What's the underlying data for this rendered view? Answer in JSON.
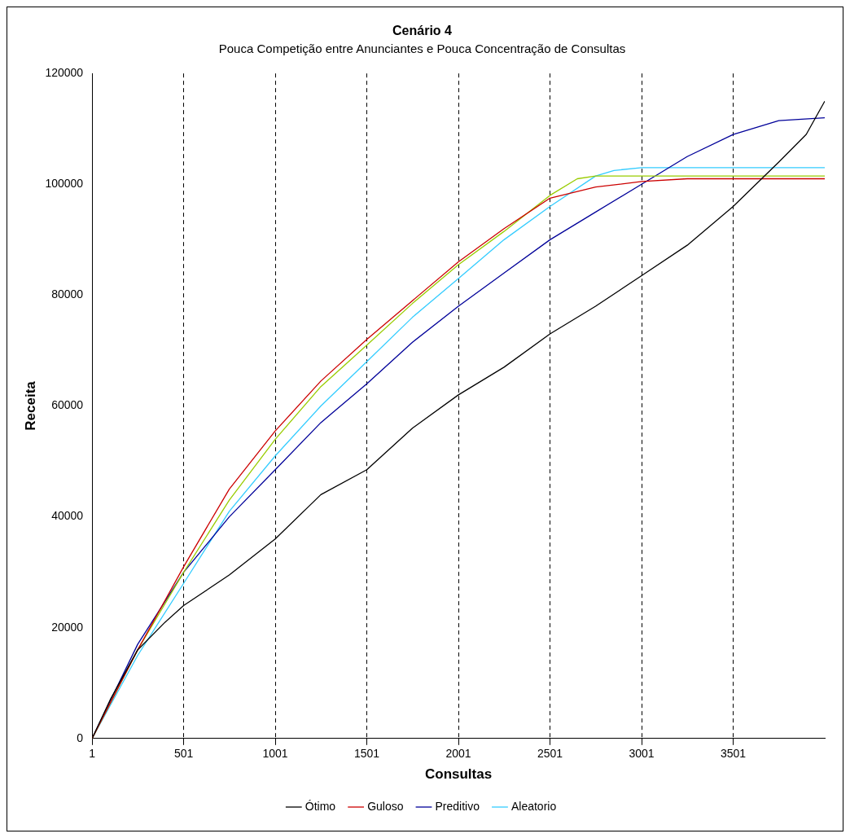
{
  "chart_data": {
    "type": "line",
    "title": "Cenário 4",
    "subtitle": "Pouca Competição entre Anunciantes e Pouca Concentração de Consultas",
    "xlabel": "Consultas",
    "ylabel": "Receita",
    "xlim": [
      1,
      4001
    ],
    "xticks": [
      1,
      501,
      1001,
      1501,
      2001,
      2501,
      3001,
      3501
    ],
    "ylim": [
      0,
      120000
    ],
    "yticks": [
      0,
      20000,
      40000,
      60000,
      80000,
      100000,
      120000
    ],
    "grid": "x",
    "legend": "bottom",
    "marker": "none",
    "line_style": "solid",
    "series": [
      {
        "name": "Ótimo",
        "color": "#000000",
        "x": [
          1,
          100,
          250,
          400,
          501,
          750,
          1001,
          1250,
          1501,
          1750,
          2001,
          2250,
          2501,
          2750,
          3001,
          3250,
          3501,
          3750,
          3900,
          4001
        ],
        "values": [
          0,
          7000,
          16000,
          21000,
          24000,
          29500,
          36000,
          44000,
          48500,
          56000,
          62000,
          67000,
          73000,
          78000,
          83500,
          89000,
          96000,
          104000,
          109000,
          115000
        ]
      },
      {
        "name": "Guloso",
        "color": "#cc0000",
        "x": [
          1,
          250,
          501,
          750,
          1001,
          1250,
          1501,
          1750,
          2001,
          2250,
          2501,
          2750,
          3001,
          3250,
          4001
        ],
        "values": [
          0,
          16000,
          31000,
          45000,
          55500,
          64500,
          72000,
          79000,
          86000,
          92000,
          97500,
          99500,
          100500,
          101000,
          101000
        ]
      },
      {
        "color": "#99cc00",
        "x": [
          1,
          250,
          501,
          750,
          1001,
          1250,
          1501,
          1750,
          2001,
          2250,
          2501,
          2650,
          2750,
          4001
        ],
        "values": [
          0,
          16000,
          30000,
          43000,
          54000,
          63500,
          71000,
          78500,
          85500,
          91500,
          98000,
          101000,
          101500,
          101500
        ]
      },
      {
        "name": "Preditivo",
        "color": "#000099",
        "x": [
          1,
          250,
          501,
          750,
          1001,
          1250,
          1501,
          1750,
          2001,
          2250,
          2501,
          2750,
          3001,
          3250,
          3501,
          3750,
          4001
        ],
        "values": [
          0,
          17000,
          30000,
          40000,
          48500,
          57000,
          64000,
          71500,
          78000,
          84000,
          90000,
          95000,
          100000,
          105000,
          109000,
          111500,
          112000
        ]
      },
      {
        "name": "Aleatorio",
        "color": "#33ccff",
        "x": [
          1,
          250,
          501,
          750,
          1001,
          1250,
          1501,
          1750,
          2001,
          2250,
          2501,
          2750,
          2850,
          3001,
          4001
        ],
        "values": [
          0,
          15000,
          28000,
          41000,
          51000,
          60000,
          68000,
          76000,
          83000,
          90000,
          96000,
          101500,
          102500,
          103000,
          103000
        ]
      }
    ]
  }
}
